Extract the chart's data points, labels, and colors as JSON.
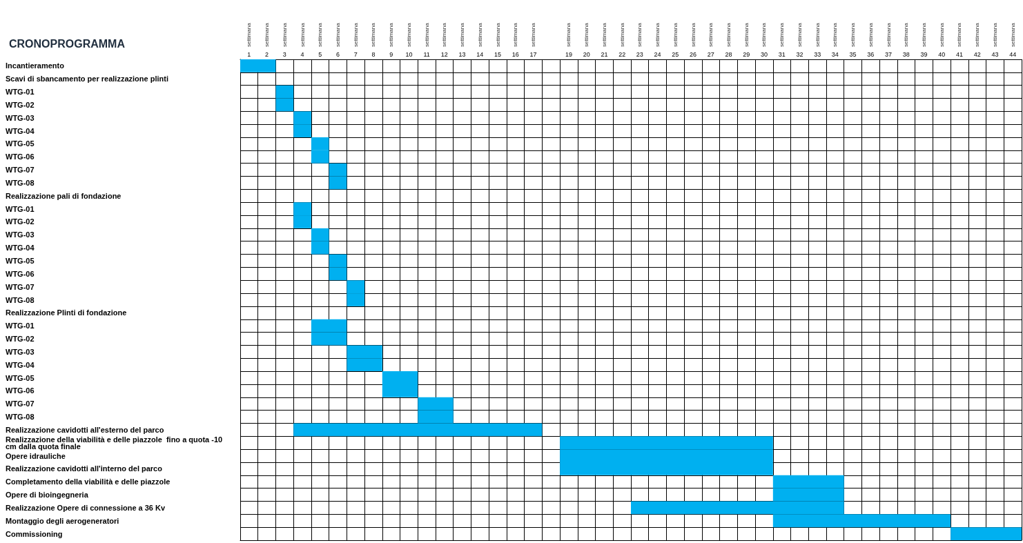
{
  "chart_data": {
    "type": "bar",
    "orientation": "horizontal",
    "title": "CRONOPROGRAMMA",
    "color": "#00b0f0",
    "grid": true,
    "categories": [
      "Incantieramento",
      "Scavi di sbancamento per realizzazione plinti",
      "WTG-01",
      "WTG-02",
      "WTG-03",
      "WTG-04",
      "WTG-05",
      "WTG-06",
      "WTG-07",
      "WTG-08",
      "Realizzazione pali di fondazione",
      "WTG-01",
      "WTG-02",
      "WTG-03",
      "WTG-04",
      "WTG-05",
      "WTG-06",
      "WTG-07",
      "WTG-08",
      "Realizzazione Plinti di fondazione",
      "WTG-01",
      "WTG-02",
      "WTG-03",
      "WTG-04",
      "WTG-05",
      "WTG-06",
      "WTG-07",
      "WTG-08",
      "Realizzazione cavidotti all'esterno del parco",
      "Realizzazione della viabilità e delle piazzole  fino a quota -10 cm dalla quota finale",
      "Opere idrauliche",
      "Realizzazione cavidotti all'interno del parco",
      "Completamento della viabilità e delle piazzole",
      "Opere di bioingegneria",
      "Realizzazione Opere di connessione a 36 Kv",
      "Montaggio degli aerogeneratori",
      "Commissioning"
    ],
    "base": [
      0.5,
      null,
      2.5,
      2.5,
      3.5,
      3.5,
      4.5,
      4.5,
      5.5,
      5.5,
      null,
      3.5,
      3.5,
      4.5,
      4.5,
      5.5,
      5.5,
      6.5,
      6.5,
      null,
      4.5,
      4.5,
      6.5,
      6.5,
      8.5,
      8.5,
      10.5,
      10.5,
      3.5,
      18.5,
      18.5,
      18.5,
      30.5,
      30.5,
      22.5,
      30.5,
      40.5
    ],
    "values": [
      2,
      null,
      1,
      1,
      1,
      1,
      1,
      1,
      1,
      1,
      null,
      1,
      1,
      1,
      1,
      1,
      1,
      1,
      1,
      null,
      2,
      2,
      2,
      2,
      2,
      2,
      2,
      2,
      14,
      12,
      12,
      12,
      4,
      4,
      12,
      10,
      4
    ],
    "xlim": [
      0.5,
      44.5
    ],
    "xticks": [
      1,
      2,
      3,
      4,
      5,
      6,
      7,
      8,
      9,
      10,
      11,
      12,
      13,
      14,
      15,
      16,
      17,
      19,
      20,
      21,
      22,
      23,
      24,
      25,
      26,
      27,
      28,
      29,
      30,
      31,
      32,
      33,
      34,
      35,
      36,
      37,
      38,
      39,
      40,
      41,
      42,
      43,
      44
    ],
    "annotations": [
      "settimana",
      "settimana",
      "settimana",
      "settimana",
      "settimana",
      "settimana",
      "settimana",
      "settimana",
      "settimana",
      "settimana",
      "settimana",
      "settimana",
      "settimana",
      "settimana",
      "settimana",
      "settimana",
      "settimana",
      "settimana",
      "settimana",
      "settimana",
      "settimana",
      "settimana",
      "settimana",
      "settimana",
      "settimana",
      "settimana",
      "settimana",
      "settimana",
      "settimana",
      "settimana",
      "settimana",
      "settimana",
      "settimana",
      "settimana",
      "settimana",
      "settimana",
      "settimana",
      "settimana",
      "settimana",
      "settimana",
      "settimana",
      "settimana",
      "settimana"
    ]
  }
}
